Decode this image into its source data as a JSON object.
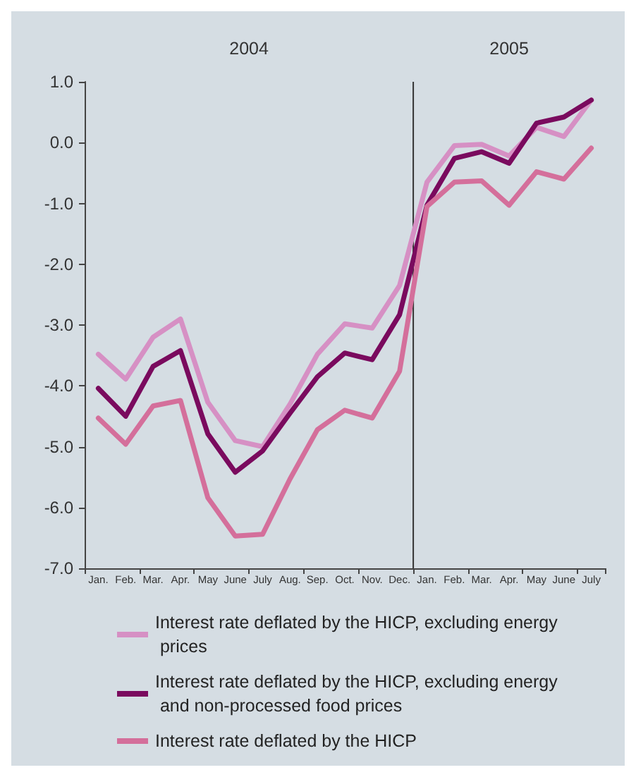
{
  "chart_data": {
    "type": "line",
    "categories": [
      "Jan.",
      "Feb.",
      "Mar.",
      "Apr.",
      "May",
      "June",
      "July",
      "Aug.",
      "Sep.",
      "Oct.",
      "Nov.",
      "Dec.",
      "Jan.",
      "Feb.",
      "Mar.",
      "Apr.",
      "May",
      "June",
      "July"
    ],
    "series": [
      {
        "name": "Interest rate deflated by the HICP, excluding energy prices",
        "color": "#d690c4",
        "values": [
          -3.48,
          -3.89,
          -3.2,
          -2.9,
          -4.27,
          -4.9,
          -5.0,
          -4.3,
          -3.48,
          -2.98,
          -3.05,
          -2.35,
          -0.65,
          -0.05,
          -0.03,
          -0.22,
          0.25,
          0.1,
          0.7
        ]
      },
      {
        "name": "Interest rate deflated by the HICP, excluding energy and non-processed food prices",
        "color": "#7a0a5e",
        "values": [
          -4.04,
          -4.5,
          -3.68,
          -3.42,
          -4.79,
          -5.42,
          -5.07,
          -4.45,
          -3.85,
          -3.46,
          -3.57,
          -2.83,
          -1.03,
          -0.26,
          -0.15,
          -0.34,
          0.32,
          0.42,
          0.7
        ]
      },
      {
        "name": "Interest rate deflated by the HICP",
        "color": "#d46f9b",
        "values": [
          -4.53,
          -4.96,
          -4.33,
          -4.24,
          -5.84,
          -6.47,
          -6.44,
          -5.53,
          -4.72,
          -4.4,
          -4.53,
          -3.76,
          -1.05,
          -0.65,
          -0.63,
          -1.03,
          -0.48,
          -0.6,
          -0.09
        ]
      }
    ],
    "ylim": [
      -7,
      1
    ],
    "yticks": [
      {
        "value": -7,
        "label": "-7.0"
      },
      {
        "value": -6,
        "label": "-6.0"
      },
      {
        "value": -5,
        "label": "-5.0"
      },
      {
        "value": -4,
        "label": "-4.0"
      },
      {
        "value": -3,
        "label": "-3.0"
      },
      {
        "value": -2,
        "label": "-2.0"
      },
      {
        "value": -1,
        "label": "-1.0"
      },
      {
        "value": 0,
        "label": "0.0"
      },
      {
        "value": 1,
        "label": "1.0"
      }
    ],
    "annotations": [
      "2004",
      "2005"
    ],
    "grid": false,
    "legend": "bottom",
    "marker": "none",
    "line_style": "solid"
  }
}
